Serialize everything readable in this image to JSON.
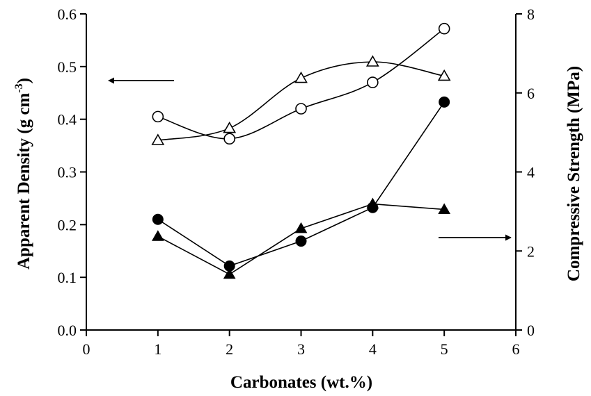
{
  "chart_data": {
    "type": "line",
    "title": "",
    "xlabel": "Carbonates (wt.%)",
    "ylabel_left": "Apparent Density (g cm",
    "ylabel_left_sup": "-3",
    "ylabel_left_close": ")",
    "ylabel_right": "Compressive Strength (MPa)",
    "xlim": [
      0,
      6
    ],
    "ylim_left": [
      0,
      0.6
    ],
    "ylim_right": [
      0,
      8
    ],
    "x_ticks": [
      0,
      1,
      2,
      3,
      4,
      5,
      6
    ],
    "y_left_ticks": [
      "0.0",
      "0.1",
      "0.2",
      "0.3",
      "0.4",
      "0.5",
      "0.6"
    ],
    "y_right_ticks": [
      "0",
      "2",
      "4",
      "6",
      "8"
    ],
    "grid": false,
    "legend": "none",
    "series": [
      {
        "axis": "left",
        "marker": "open-circle",
        "smooth": true,
        "x": [
          1,
          2,
          3,
          4,
          5
        ],
        "y": [
          0.405,
          0.363,
          0.42,
          0.47,
          0.572
        ]
      },
      {
        "axis": "left",
        "marker": "open-triangle",
        "smooth": true,
        "x": [
          1,
          2,
          3,
          4,
          5
        ],
        "y": [
          0.36,
          0.383,
          0.478,
          0.509,
          0.482
        ]
      },
      {
        "axis": "right",
        "marker": "filled-circle",
        "smooth": false,
        "x": [
          1,
          2,
          3,
          4,
          5
        ],
        "y": [
          2.8,
          1.62,
          2.25,
          3.1,
          5.77
        ]
      },
      {
        "axis": "right",
        "marker": "filled-triangle",
        "smooth": false,
        "x": [
          1,
          2,
          3,
          4,
          5
        ],
        "y": [
          2.37,
          1.41,
          2.57,
          3.19,
          3.05
        ]
      }
    ],
    "annotations": [
      {
        "type": "arrow",
        "direction": "left",
        "axis": "left"
      },
      {
        "type": "arrow",
        "direction": "right",
        "axis": "right"
      }
    ]
  }
}
